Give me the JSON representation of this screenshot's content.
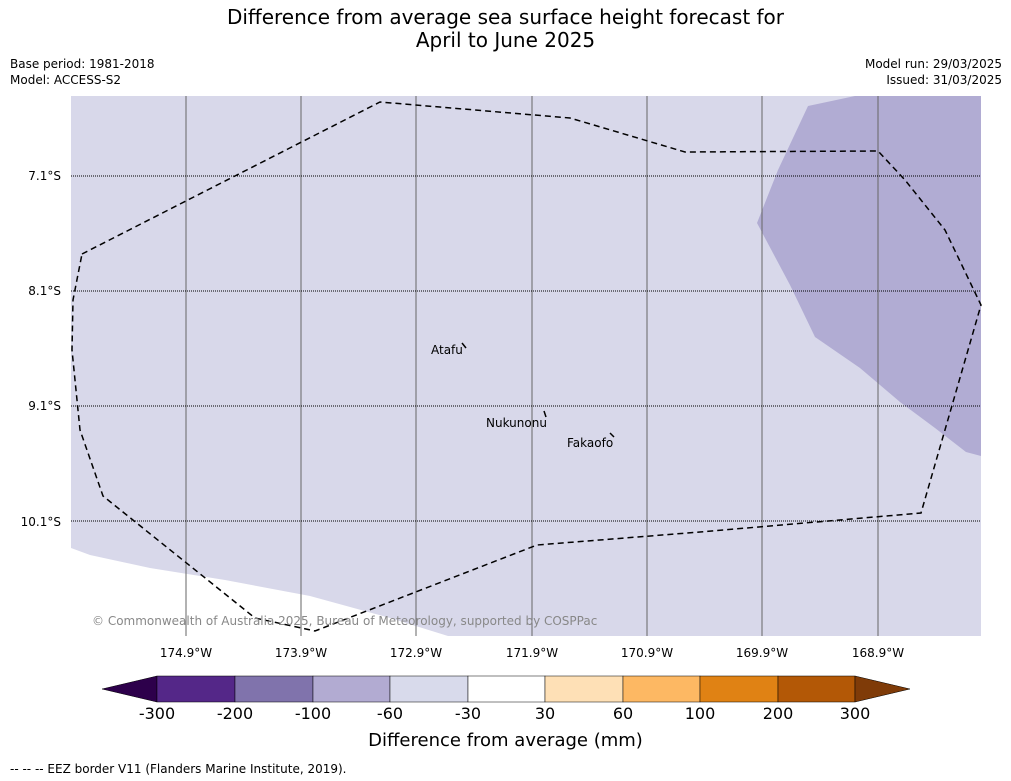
{
  "title": {
    "line1": "Difference from average sea surface height forecast for",
    "line2": "April to June 2025"
  },
  "meta": {
    "base_period": "Base period: 1981-2018",
    "model": "Model: ACCESS-S2",
    "model_run": "Model run: 29/03/2025",
    "issued": "Issued: 31/03/2025"
  },
  "map": {
    "latitudes": [
      "7.1°S",
      "8.1°S",
      "9.1°S",
      "10.1°S"
    ],
    "longitudes": [
      "174.9°W",
      "173.9°W",
      "172.9°W",
      "171.9°W",
      "170.9°W",
      "169.9°W",
      "168.9°W"
    ],
    "places": [
      "Atafu",
      "Nukunonu",
      "Fakaofo"
    ],
    "copyright": "© Commonwealth of Australia 2025, Bureau of Meteorology, supported by COSPPac",
    "colors": {
      "-30 to -60": "#d8d8ea",
      "-60 to -100": "#b1acd3",
      "eez_border": "#000000"
    }
  },
  "colorbar": {
    "ticks": [
      "-300",
      "-200",
      "-100",
      "-60",
      "-30",
      "30",
      "60",
      "100",
      "200",
      "300"
    ],
    "colors": [
      "#2d004b",
      "#542788",
      "#8073ac",
      "#b2abd2",
      "#d8daeb",
      "#ffffff",
      "#fee0b6",
      "#fdb863",
      "#e08214",
      "#b35806",
      "#7f3b08"
    ],
    "title": "Difference from average (mm)"
  },
  "footnote": "--  --  -- EEZ border V11 (Flanders Marine Institute, 2019)."
}
